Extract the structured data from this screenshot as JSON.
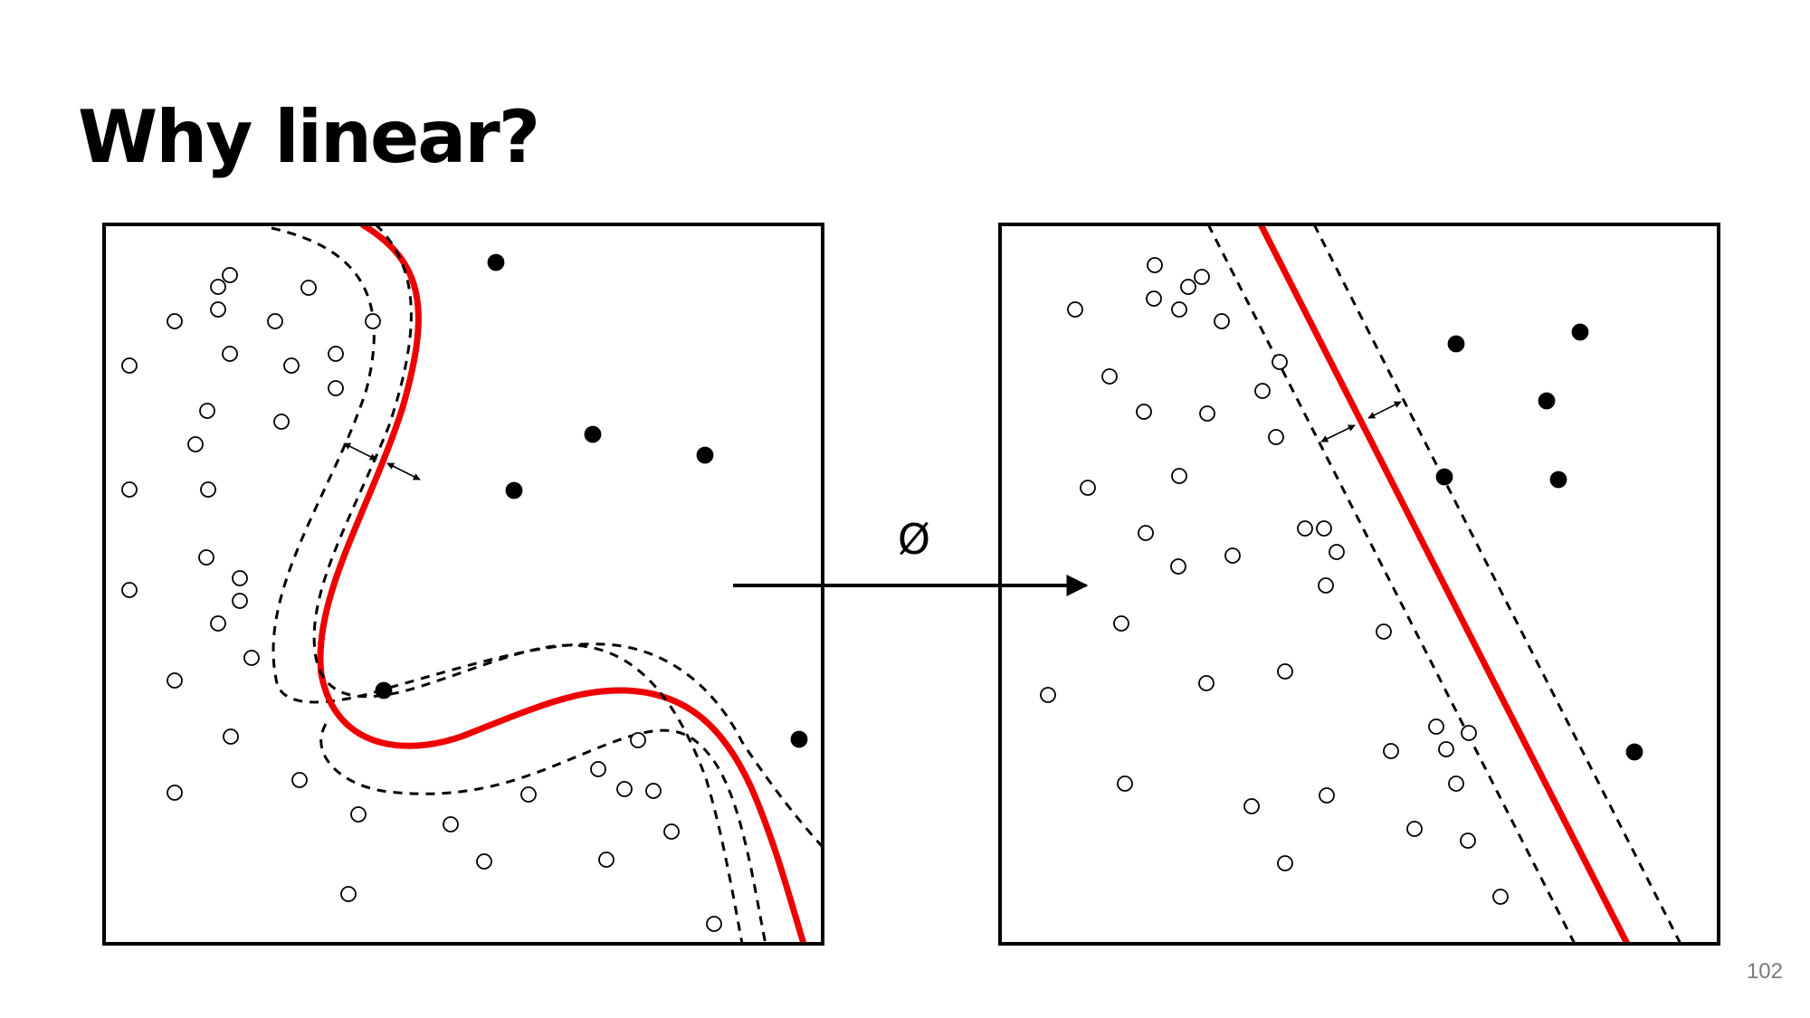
{
  "slide": {
    "title": "Why linear?",
    "page_number": "102",
    "mapping_label": "Ø"
  },
  "colors": {
    "decision_boundary": "#ee0000",
    "margin": "#000000",
    "point": "#000000",
    "background": "#ffffff"
  },
  "legend_semantics": {
    "open_circle": "class A (hollow point)",
    "filled_circle": "class B (solid point)"
  }
}
